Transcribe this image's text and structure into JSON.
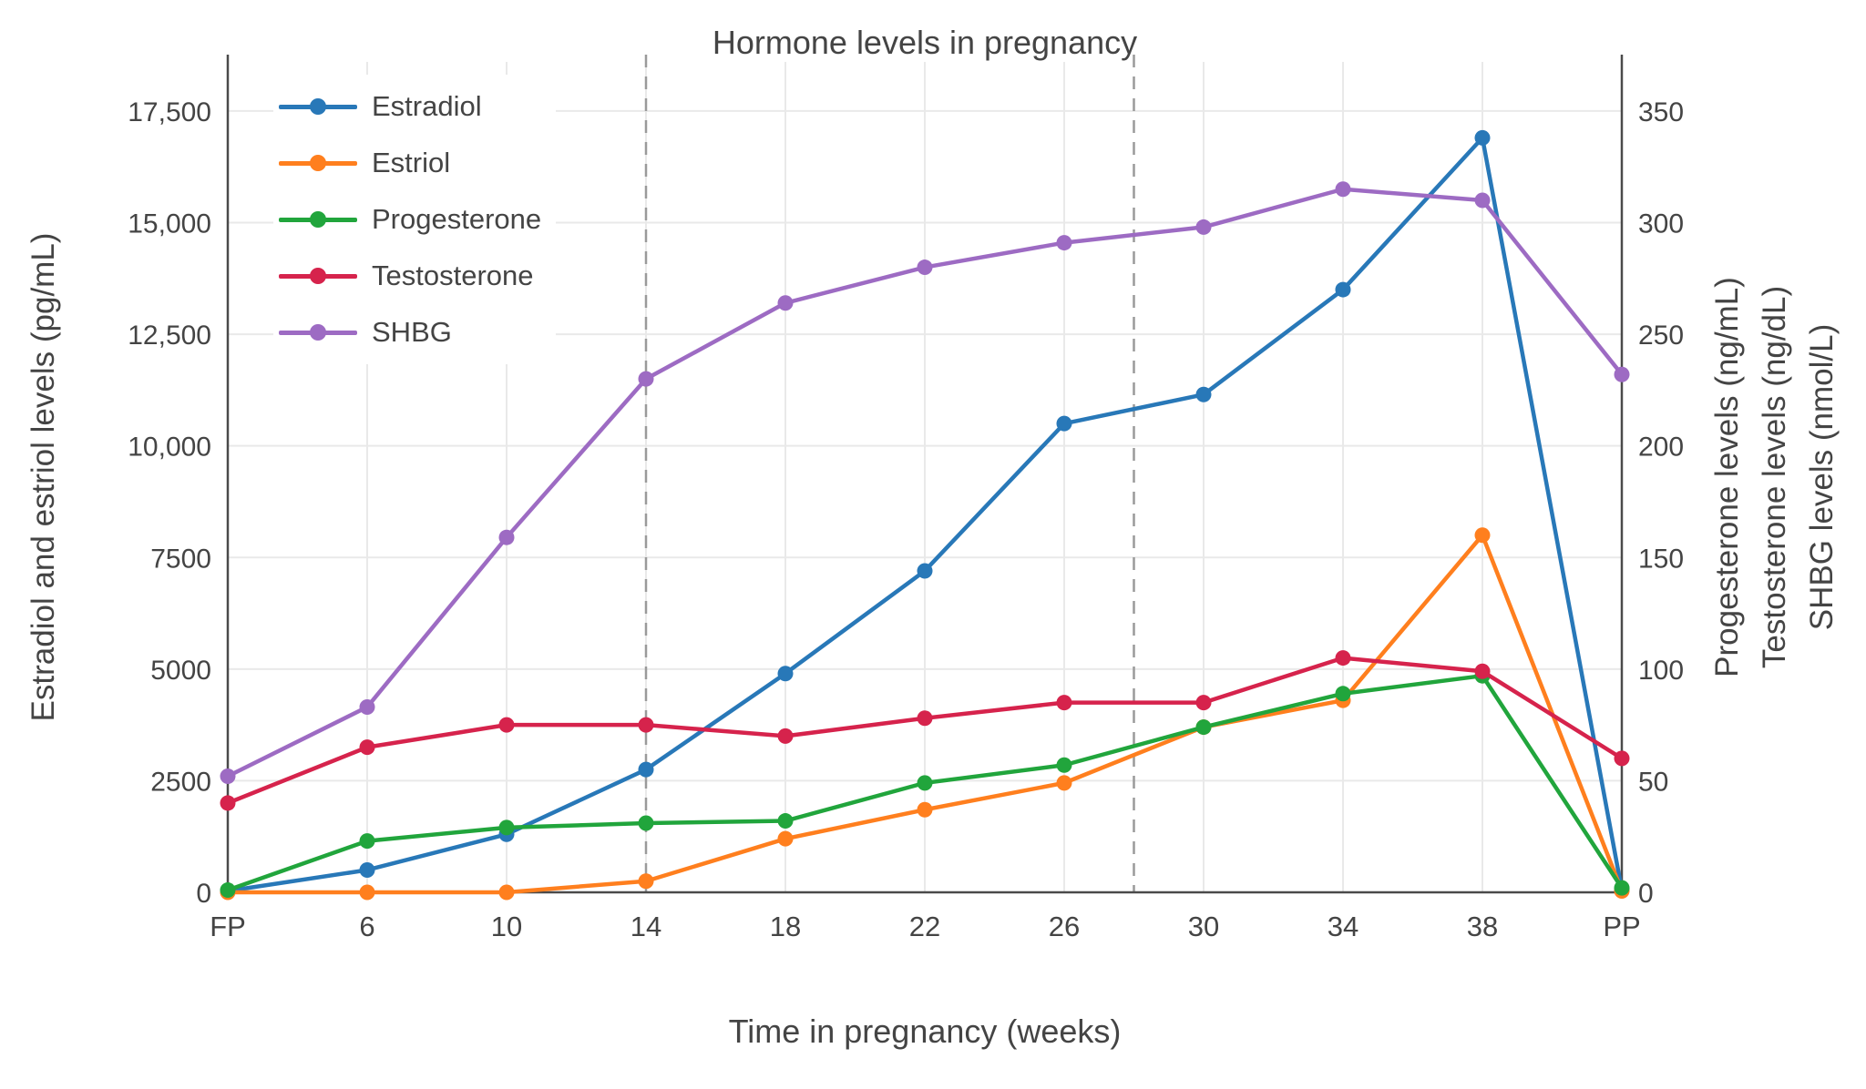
{
  "chart_data": {
    "type": "line",
    "title": "Hormone levels in pregnancy",
    "x_label": "Time in pregnancy (weeks)",
    "x_categories": [
      "FP",
      "6",
      "10",
      "14",
      "18",
      "22",
      "26",
      "30",
      "34",
      "38",
      "PP"
    ],
    "left_axis": {
      "label": "Estradiol and estriol levels (pg/mL)",
      "ticks": [
        0,
        2500,
        5000,
        7500,
        10000,
        12500,
        15000,
        17500
      ],
      "tick_labels": [
        "0",
        "2500",
        "5000",
        "7500",
        "10,000",
        "12,500",
        "15,000",
        "17,500"
      ],
      "range": [
        0,
        18600
      ]
    },
    "right_axis": {
      "labels": [
        "Progesterone levels (ng/mL)",
        "Testosterone levels (ng/dL)",
        "SHBG levels (nmol/L)"
      ],
      "ticks": [
        0,
        50,
        100,
        150,
        200,
        250,
        300,
        350
      ],
      "tick_labels": [
        "0",
        "50",
        "100",
        "150",
        "200",
        "250",
        "300",
        "350"
      ],
      "range": [
        0,
        372
      ],
      "scale_to_left": 50
    },
    "series": [
      {
        "name": "Estradiol",
        "units": "pg/mL",
        "axis": "left",
        "color": "#2878b8",
        "values": [
          30,
          500,
          1300,
          2750,
          4900,
          7200,
          10500,
          11150,
          13500,
          16900,
          50
        ]
      },
      {
        "name": "Estriol",
        "units": "pg/mL",
        "axis": "left",
        "color": "#ff7f1e",
        "values": [
          0,
          0,
          0,
          250,
          1200,
          1850,
          2450,
          3700,
          4300,
          8000,
          30
        ]
      },
      {
        "name": "Progesterone",
        "units": "ng/mL",
        "axis": "right",
        "color": "#21a53c",
        "values": [
          1,
          23,
          29,
          31,
          32,
          49,
          57,
          74,
          89,
          97,
          2
        ]
      },
      {
        "name": "Testosterone",
        "units": "ng/dL",
        "axis": "right",
        "color": "#d6234c",
        "values": [
          40,
          65,
          75,
          75,
          70,
          78,
          85,
          85,
          105,
          99,
          60
        ]
      },
      {
        "name": "SHBG",
        "units": "nmol/L",
        "axis": "right",
        "color": "#9d6bc3",
        "values": [
          52,
          83,
          159,
          230,
          264,
          280,
          291,
          298,
          315,
          310,
          232
        ]
      }
    ],
    "vlines": [
      {
        "index": 0,
        "style": "solid",
        "name": "fp-line"
      },
      {
        "index": 3,
        "style": "dashed",
        "name": "second-trimester-line"
      },
      {
        "index": 6.5,
        "style": "dashed",
        "name": "third-trimester-line"
      },
      {
        "index": 10,
        "style": "solid",
        "name": "pp-line"
      }
    ],
    "legend": {
      "position": "top-left-inside"
    },
    "grid": true
  },
  "colors": {
    "background": "#ffffff",
    "text": "#444444",
    "grid": "#e9e9e9",
    "axis_line": "#4a4a4a",
    "dashed_line": "#9a9a9a"
  }
}
